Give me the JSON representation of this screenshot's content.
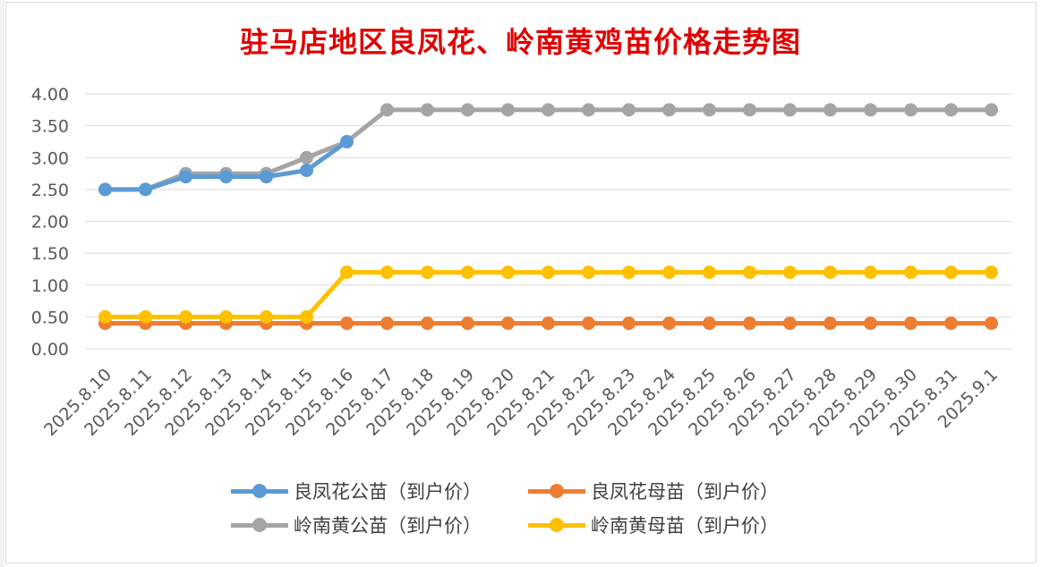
{
  "chart_data": {
    "type": "line",
    "title": "驻马店地区良凤花、岭南黄鸡苗价格走势图",
    "categories": [
      "2025.8.10",
      "2025.8.11",
      "2025.8.12",
      "2025.8.13",
      "2025.8.14",
      "2025.8.15",
      "2025.8.16",
      "2025.8.17",
      "2025.8.18",
      "2025.8.19",
      "2025.8.20",
      "2025.8.21",
      "2025.8.22",
      "2025.8.23",
      "2025.8.24",
      "2025.8.25",
      "2025.8.26",
      "2025.8.27",
      "2025.8.28",
      "2025.8.29",
      "2025.8.30",
      "2025.8.31",
      "2025.9.1"
    ],
    "ylim": [
      0,
      4
    ],
    "yticks": [
      "0.00",
      "0.50",
      "1.00",
      "1.50",
      "2.00",
      "2.50",
      "3.00",
      "3.50",
      "4.00"
    ],
    "grid": true,
    "legend_position": "bottom",
    "series": [
      {
        "name": "良凤花公苗（到户价）",
        "color": "#5b9bd5",
        "values": [
          2.5,
          2.5,
          2.7,
          2.7,
          2.7,
          2.8,
          3.25,
          null,
          null,
          null,
          null,
          null,
          null,
          null,
          null,
          null,
          null,
          null,
          null,
          null,
          null,
          null,
          null
        ]
      },
      {
        "name": "良凤花母苗（到户价）",
        "color": "#ed7d31",
        "values": [
          0.4,
          0.4,
          0.4,
          0.4,
          0.4,
          0.4,
          0.4,
          0.4,
          0.4,
          0.4,
          0.4,
          0.4,
          0.4,
          0.4,
          0.4,
          0.4,
          0.4,
          0.4,
          0.4,
          0.4,
          0.4,
          0.4,
          0.4
        ]
      },
      {
        "name": "岭南黄公苗（到户价）",
        "color": "#a5a5a5",
        "values": [
          2.5,
          2.5,
          2.75,
          2.75,
          2.75,
          3.0,
          3.25,
          3.75,
          3.75,
          3.75,
          3.75,
          3.75,
          3.75,
          3.75,
          3.75,
          3.75,
          3.75,
          3.75,
          3.75,
          3.75,
          3.75,
          3.75,
          3.75
        ]
      },
      {
        "name": "岭南黄母苗（到户价）",
        "color": "#ffc000",
        "values": [
          0.5,
          0.5,
          0.5,
          0.5,
          0.5,
          0.5,
          1.2,
          1.2,
          1.2,
          1.2,
          1.2,
          1.2,
          1.2,
          1.2,
          1.2,
          1.2,
          1.2,
          1.2,
          1.2,
          1.2,
          1.2,
          1.2,
          1.2
        ]
      }
    ]
  }
}
